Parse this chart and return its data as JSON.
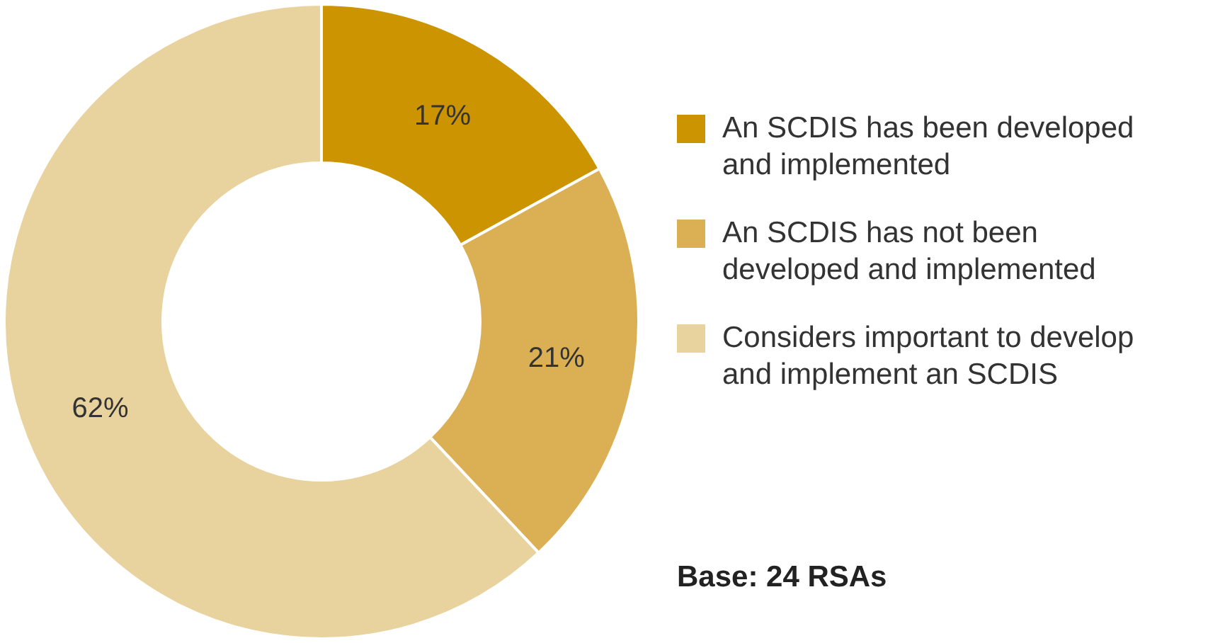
{
  "chart_data": {
    "type": "donut",
    "categories": [
      "An SCDIS has been developed and implemented",
      "An SCDIS has not been developed and implemented",
      "Considers important to develop and implement an SCDIS"
    ],
    "values": [
      17,
      21,
      62
    ],
    "colors": [
      "#cc9400",
      "#dbb054",
      "#e8d29d"
    ],
    "value_labels": [
      "17%",
      "21%",
      "62%"
    ],
    "legend": "right",
    "annotations": [
      "Base: 24 RSAs"
    ]
  }
}
